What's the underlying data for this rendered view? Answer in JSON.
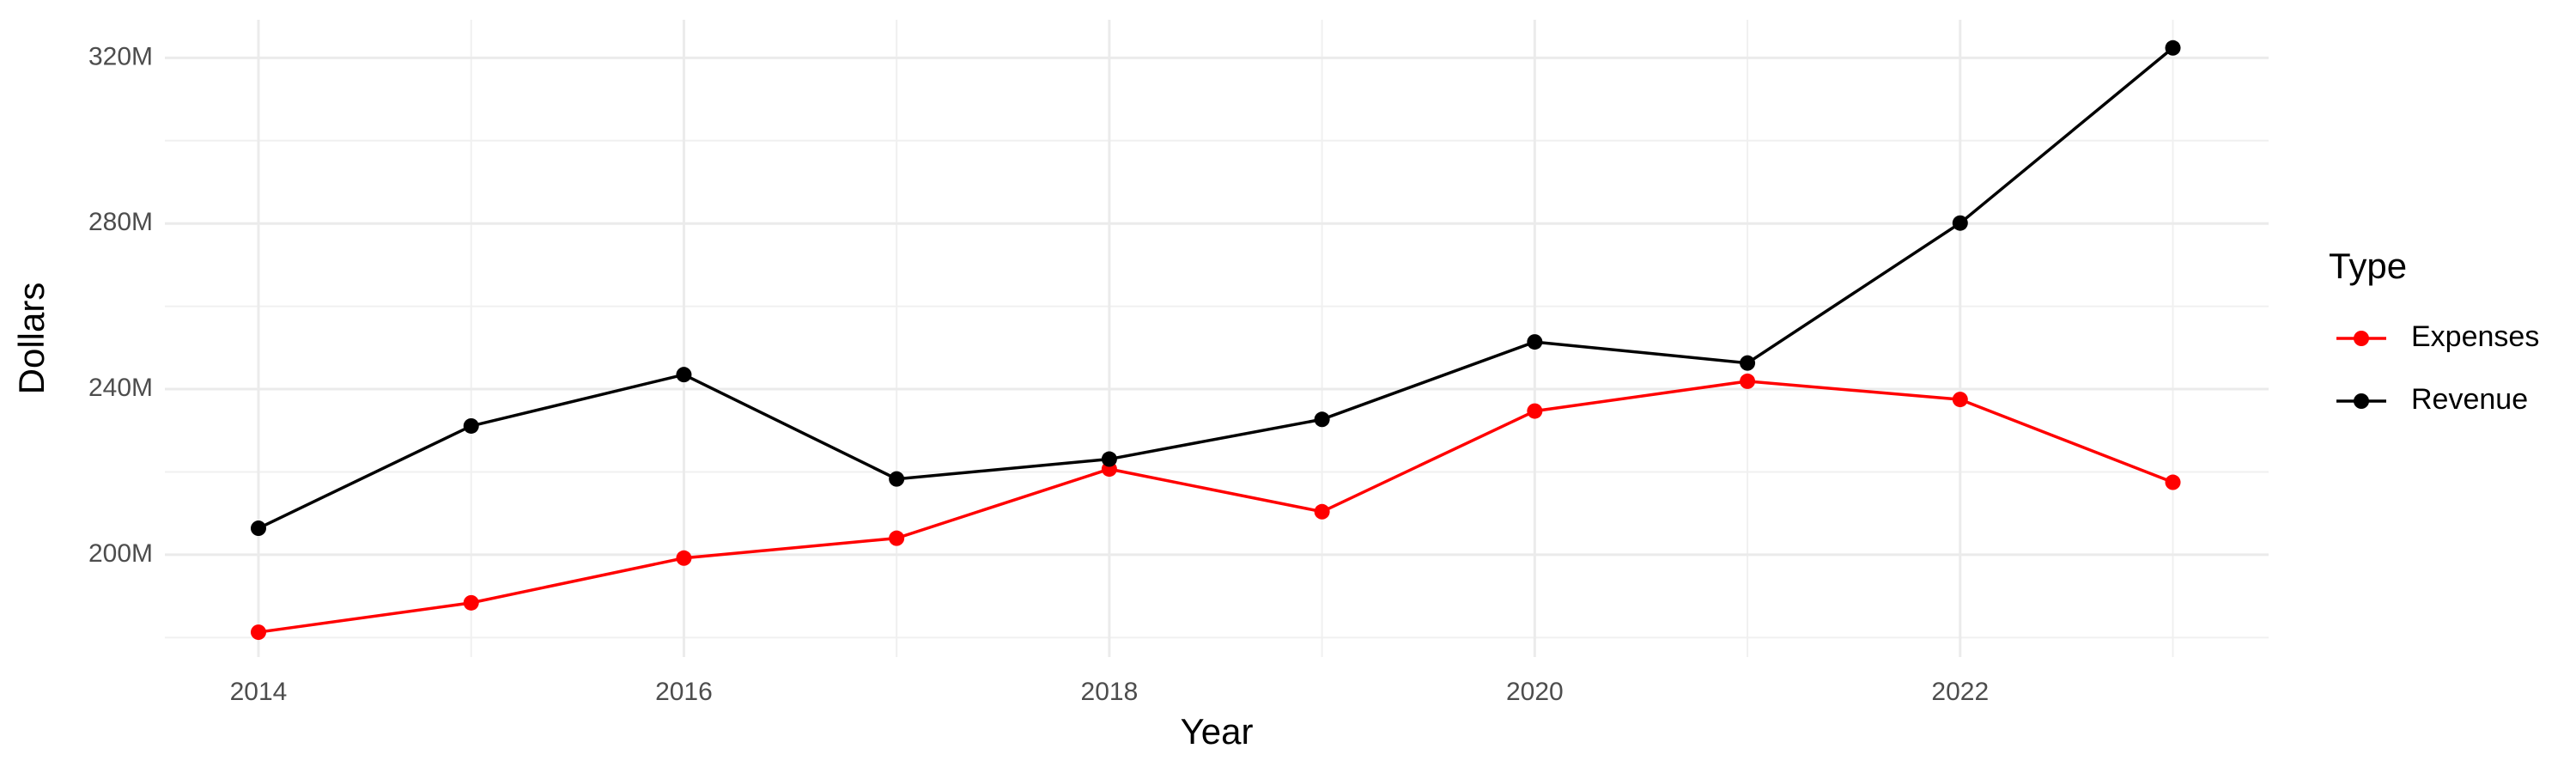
{
  "chart_data": {
    "type": "line",
    "x_label": "Year",
    "y_label": "Dollars",
    "legend_title": "Type",
    "x": [
      2014,
      2015,
      2016,
      2017,
      2018,
      2019,
      2020,
      2021,
      2022,
      2023
    ],
    "series": [
      {
        "name": "Expenses",
        "color": "#ff0000",
        "values": [
          181300000,
          188400000,
          199200000,
          204000000,
          220700000,
          210400000,
          234700000,
          241900000,
          237500000,
          217500000
        ]
      },
      {
        "name": "Revenue",
        "color": "#000000",
        "values": [
          206400000,
          231100000,
          243500000,
          218300000,
          223100000,
          232700000,
          251400000,
          246300000,
          280100000,
          322400000
        ]
      }
    ],
    "xlim": [
      2013.56,
      2023.45
    ],
    "xticks": [
      2014,
      2016,
      2018,
      2020,
      2022
    ],
    "ylim": [
      175300000,
      329200000
    ],
    "yticks": [
      {
        "value": 200000000,
        "label": "200M"
      },
      {
        "value": 240000000,
        "label": "240M"
      },
      {
        "value": 280000000,
        "label": "280M"
      },
      {
        "value": 320000000,
        "label": "320M"
      }
    ],
    "grid": true,
    "legend_position": "right"
  }
}
